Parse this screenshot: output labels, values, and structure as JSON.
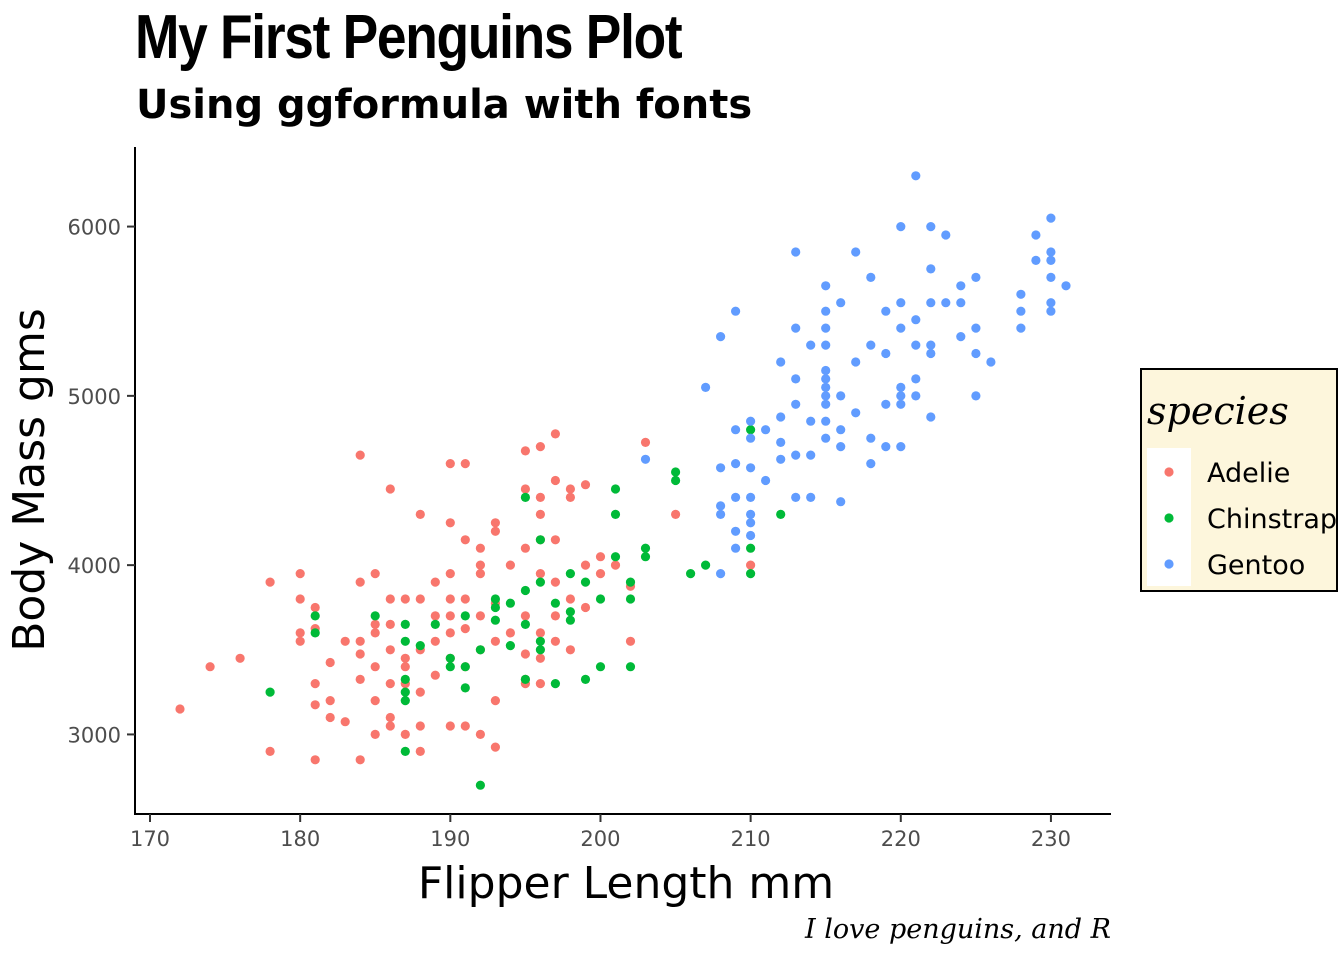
{
  "title": "My First Penguins Plot",
  "subtitle": "Using ggformula with fonts",
  "caption": "I love penguins, and R",
  "legend": {
    "title": "species",
    "background": "#fdf6dc",
    "border": "#000000"
  },
  "chart_data": {
    "type": "scatter",
    "xlabel": "Flipper Length mm",
    "ylabel": "Body Mass gms",
    "xlim": [
      169,
      234
    ],
    "ylim": [
      2530,
      6470
    ],
    "xticks": [
      170,
      180,
      190,
      200,
      210,
      220,
      230
    ],
    "yticks": [
      3000,
      4000,
      5000,
      6000
    ],
    "grid": false,
    "legend_position": "right",
    "series": [
      {
        "name": "Adelie",
        "color": "#f8766d",
        "points": [
          [
            172,
            3150
          ],
          [
            174,
            3400
          ],
          [
            176,
            3450
          ],
          [
            178,
            3900
          ],
          [
            178,
            2900
          ],
          [
            180,
            3950
          ],
          [
            180,
            3800
          ],
          [
            180,
            3600
          ],
          [
            180,
            3550
          ],
          [
            181,
            3750
          ],
          [
            181,
            3625
          ],
          [
            181,
            3300
          ],
          [
            181,
            3175
          ],
          [
            181,
            2850
          ],
          [
            182,
            3425
          ],
          [
            182,
            3200
          ],
          [
            182,
            3100
          ],
          [
            183,
            3550
          ],
          [
            183,
            3075
          ],
          [
            184,
            4650
          ],
          [
            184,
            3900
          ],
          [
            184,
            3550
          ],
          [
            184,
            3475
          ],
          [
            184,
            3325
          ],
          [
            184,
            2850
          ],
          [
            185,
            3950
          ],
          [
            185,
            3650
          ],
          [
            185,
            3600
          ],
          [
            185,
            3400
          ],
          [
            185,
            3200
          ],
          [
            185,
            3000
          ],
          [
            186,
            4450
          ],
          [
            186,
            3800
          ],
          [
            186,
            3650
          ],
          [
            186,
            3500
          ],
          [
            186,
            3300
          ],
          [
            186,
            3100
          ],
          [
            186,
            3050
          ],
          [
            187,
            3800
          ],
          [
            187,
            3450
          ],
          [
            187,
            3400
          ],
          [
            187,
            3300
          ],
          [
            187,
            3000
          ],
          [
            188,
            4300
          ],
          [
            188,
            3800
          ],
          [
            188,
            3500
          ],
          [
            188,
            3250
          ],
          [
            188,
            3050
          ],
          [
            188,
            2900
          ],
          [
            189,
            3900
          ],
          [
            189,
            3700
          ],
          [
            189,
            3550
          ],
          [
            189,
            3350
          ],
          [
            190,
            4600
          ],
          [
            190,
            4250
          ],
          [
            190,
            3950
          ],
          [
            190,
            3800
          ],
          [
            190,
            3700
          ],
          [
            190,
            3600
          ],
          [
            190,
            3450
          ],
          [
            190,
            3050
          ],
          [
            191,
            4600
          ],
          [
            191,
            4150
          ],
          [
            191,
            3800
          ],
          [
            191,
            3625
          ],
          [
            191,
            3400
          ],
          [
            191,
            3050
          ],
          [
            192,
            4100
          ],
          [
            192,
            4000
          ],
          [
            192,
            3950
          ],
          [
            192,
            3700
          ],
          [
            192,
            3500
          ],
          [
            192,
            3000
          ],
          [
            193,
            4250
          ],
          [
            193,
            4200
          ],
          [
            193,
            3775
          ],
          [
            193,
            3550
          ],
          [
            193,
            3200
          ],
          [
            193,
            2925
          ],
          [
            194,
            4000
          ],
          [
            194,
            3600
          ],
          [
            195,
            4675
          ],
          [
            195,
            4450
          ],
          [
            195,
            4100
          ],
          [
            195,
            3700
          ],
          [
            195,
            3475
          ],
          [
            195,
            3325
          ],
          [
            195,
            3300
          ],
          [
            196,
            4700
          ],
          [
            196,
            4400
          ],
          [
            196,
            4300
          ],
          [
            196,
            3950
          ],
          [
            196,
            4150
          ],
          [
            196,
            3600
          ],
          [
            196,
            3450
          ],
          [
            196,
            3300
          ],
          [
            197,
            4775
          ],
          [
            197,
            4500
          ],
          [
            197,
            4150
          ],
          [
            197,
            3900
          ],
          [
            197,
            3700
          ],
          [
            197,
            3550
          ],
          [
            198,
            4400
          ],
          [
            198,
            4450
          ],
          [
            198,
            3800
          ],
          [
            198,
            3500
          ],
          [
            199,
            4475
          ],
          [
            199,
            4000
          ],
          [
            199,
            3750
          ],
          [
            200,
            4050
          ],
          [
            200,
            3950
          ],
          [
            201,
            4000
          ],
          [
            202,
            3875
          ],
          [
            202,
            3550
          ],
          [
            203,
            4725
          ],
          [
            205,
            4300
          ],
          [
            210,
            4000
          ]
        ]
      },
      {
        "name": "Chinstrap",
        "color": "#00ba38",
        "points": [
          [
            178,
            3250
          ],
          [
            181,
            3700
          ],
          [
            181,
            3600
          ],
          [
            185,
            3700
          ],
          [
            187,
            3650
          ],
          [
            187,
            3550
          ],
          [
            187,
            3325
          ],
          [
            187,
            3250
          ],
          [
            187,
            3200
          ],
          [
            187,
            2900
          ],
          [
            188,
            3525
          ],
          [
            189,
            3650
          ],
          [
            190,
            3450
          ],
          [
            190,
            3400
          ],
          [
            191,
            3700
          ],
          [
            191,
            3400
          ],
          [
            191,
            3275
          ],
          [
            192,
            3500
          ],
          [
            192,
            2700
          ],
          [
            193,
            3800
          ],
          [
            193,
            3750
          ],
          [
            193,
            3675
          ],
          [
            194,
            3775
          ],
          [
            194,
            3525
          ],
          [
            195,
            4400
          ],
          [
            195,
            3850
          ],
          [
            195,
            3650
          ],
          [
            195,
            3325
          ],
          [
            196,
            4150
          ],
          [
            196,
            3900
          ],
          [
            196,
            3550
          ],
          [
            196,
            3500
          ],
          [
            197,
            3775
          ],
          [
            197,
            3300
          ],
          [
            198,
            3950
          ],
          [
            198,
            3675
          ],
          [
            198,
            3725
          ],
          [
            199,
            3900
          ],
          [
            199,
            3325
          ],
          [
            200,
            3800
          ],
          [
            200,
            3400
          ],
          [
            201,
            4450
          ],
          [
            201,
            4300
          ],
          [
            201,
            4050
          ],
          [
            202,
            3900
          ],
          [
            202,
            3800
          ],
          [
            202,
            3400
          ],
          [
            203,
            4100
          ],
          [
            203,
            4050
          ],
          [
            205,
            4550
          ],
          [
            205,
            4500
          ],
          [
            206,
            3950
          ],
          [
            207,
            4000
          ],
          [
            210,
            4800
          ],
          [
            210,
            4100
          ],
          [
            210,
            3950
          ],
          [
            212,
            4300
          ]
        ]
      },
      {
        "name": "Gentoo",
        "color": "#619cff",
        "points": [
          [
            203,
            4625
          ],
          [
            207,
            5050
          ],
          [
            208,
            5350
          ],
          [
            208,
            4575
          ],
          [
            208,
            4300
          ],
          [
            208,
            4350
          ],
          [
            208,
            3950
          ],
          [
            209,
            5500
          ],
          [
            209,
            4800
          ],
          [
            209,
            4600
          ],
          [
            209,
            4400
          ],
          [
            209,
            4200
          ],
          [
            209,
            4100
          ],
          [
            210,
            4850
          ],
          [
            210,
            4750
          ],
          [
            210,
            4575
          ],
          [
            210,
            4400
          ],
          [
            210,
            4175
          ],
          [
            210,
            4300
          ],
          [
            210,
            4250
          ],
          [
            211,
            4800
          ],
          [
            211,
            4500
          ],
          [
            212,
            5200
          ],
          [
            212,
            4875
          ],
          [
            212,
            4725
          ],
          [
            212,
            4625
          ],
          [
            213,
            5850
          ],
          [
            213,
            5400
          ],
          [
            213,
            5100
          ],
          [
            213,
            4950
          ],
          [
            213,
            4650
          ],
          [
            213,
            4400
          ],
          [
            214,
            5300
          ],
          [
            214,
            4850
          ],
          [
            214,
            4650
          ],
          [
            214,
            4400
          ],
          [
            215,
            5650
          ],
          [
            215,
            5500
          ],
          [
            215,
            5400
          ],
          [
            215,
            5300
          ],
          [
            215,
            5150
          ],
          [
            215,
            5100
          ],
          [
            215,
            5050
          ],
          [
            215,
            5000
          ],
          [
            215,
            4950
          ],
          [
            215,
            4850
          ],
          [
            215,
            4750
          ],
          [
            216,
            5550
          ],
          [
            216,
            5000
          ],
          [
            216,
            4800
          ],
          [
            216,
            4700
          ],
          [
            216,
            4375
          ],
          [
            217,
            5850
          ],
          [
            217,
            5200
          ],
          [
            217,
            4900
          ],
          [
            218,
            5700
          ],
          [
            218,
            5300
          ],
          [
            218,
            4750
          ],
          [
            218,
            4600
          ],
          [
            219,
            5500
          ],
          [
            219,
            5250
          ],
          [
            219,
            4950
          ],
          [
            219,
            4700
          ],
          [
            220,
            6000
          ],
          [
            220,
            5550
          ],
          [
            220,
            5400
          ],
          [
            220,
            5050
          ],
          [
            220,
            5000
          ],
          [
            220,
            4950
          ],
          [
            220,
            4700
          ],
          [
            221,
            6300
          ],
          [
            221,
            5450
          ],
          [
            221,
            5300
          ],
          [
            221,
            5100
          ],
          [
            221,
            5000
          ],
          [
            222,
            6000
          ],
          [
            222,
            5750
          ],
          [
            222,
            5550
          ],
          [
            222,
            5300
          ],
          [
            222,
            5250
          ],
          [
            222,
            4875
          ],
          [
            223,
            5950
          ],
          [
            223,
            5550
          ],
          [
            224,
            5650
          ],
          [
            224,
            5550
          ],
          [
            224,
            5350
          ],
          [
            225,
            5700
          ],
          [
            225,
            5400
          ],
          [
            225,
            5250
          ],
          [
            225,
            5000
          ],
          [
            226,
            5200
          ],
          [
            228,
            5600
          ],
          [
            228,
            5500
          ],
          [
            228,
            5400
          ],
          [
            229,
            5950
          ],
          [
            229,
            5800
          ],
          [
            230,
            6050
          ],
          [
            230,
            5850
          ],
          [
            230,
            5800
          ],
          [
            230,
            5700
          ],
          [
            230,
            5550
          ],
          [
            230,
            5500
          ],
          [
            231,
            5650
          ]
        ]
      }
    ]
  }
}
